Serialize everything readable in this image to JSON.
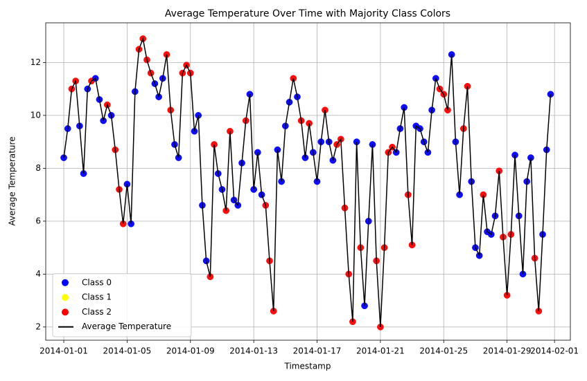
{
  "chart_data": {
    "type": "scatter",
    "title": "Average Temperature Over Time with Majority Class Colors",
    "xlabel": "Timestamp",
    "ylabel": "Average Temperature",
    "xlim": [
      -1.14,
      32
    ],
    "ylim": [
      1.5,
      13.5
    ],
    "xticks": [
      {
        "value": 0,
        "label": "2014-01-01"
      },
      {
        "value": 4,
        "label": "2014-01-05"
      },
      {
        "value": 8,
        "label": "2014-01-09"
      },
      {
        "value": 12,
        "label": "2014-01-13"
      },
      {
        "value": 16,
        "label": "2014-01-17"
      },
      {
        "value": 20,
        "label": "2014-01-21"
      },
      {
        "value": 24,
        "label": "2014-01-25"
      },
      {
        "value": 28,
        "label": "2014-01-29"
      },
      {
        "value": 31,
        "label": "2014-02-01"
      }
    ],
    "yticks": [
      2,
      4,
      6,
      8,
      10,
      12
    ],
    "grid": true,
    "legend_position": "lower left",
    "classes": [
      {
        "name": "Class 0",
        "color": "#0000ff"
      },
      {
        "name": "Class 1",
        "color": "#ffff00"
      },
      {
        "name": "Class 2",
        "color": "#ff0000"
      }
    ],
    "x": [
      0,
      0.25,
      0.5,
      0.75,
      1,
      1.25,
      1.5,
      1.75,
      2,
      2.25,
      2.5,
      2.75,
      3,
      3.25,
      3.5,
      3.75,
      4,
      4.25,
      4.5,
      4.75,
      5,
      5.25,
      5.5,
      5.75,
      6,
      6.25,
      6.5,
      6.75,
      7,
      7.25,
      7.5,
      7.75,
      8,
      8.25,
      8.5,
      8.75,
      9,
      9.25,
      9.5,
      9.75,
      10,
      10.25,
      10.5,
      10.75,
      11,
      11.25,
      11.5,
      11.75,
      12,
      12.25,
      12.5,
      12.75,
      13,
      13.25,
      13.5,
      13.75,
      14,
      14.25,
      14.5,
      14.75,
      15,
      15.25,
      15.5,
      15.75,
      16,
      16.25,
      16.5,
      16.75,
      17,
      17.25,
      17.5,
      17.75,
      18,
      18.25,
      18.5,
      18.75,
      19,
      19.25,
      19.5,
      19.75,
      20,
      20.25,
      20.5,
      20.75,
      21,
      21.25,
      21.5,
      21.75,
      22,
      22.25,
      22.5,
      22.75,
      23,
      23.25,
      23.5,
      23.75,
      24,
      24.25,
      24.5,
      24.75,
      25,
      25.25,
      25.5,
      25.75,
      26,
      26.25,
      26.5,
      26.75,
      27,
      27.25,
      27.5,
      27.75,
      28,
      28.25,
      28.5,
      28.75,
      29,
      29.25,
      29.5,
      29.75,
      30,
      30.25,
      30.5,
      30.75
    ],
    "series": [
      {
        "name": "Average Temperature",
        "color": "#000000",
        "values": [
          8.4,
          9.5,
          11.0,
          11.3,
          9.6,
          7.8,
          11.0,
          11.3,
          11.4,
          10.6,
          9.8,
          10.4,
          10.0,
          8.7,
          7.2,
          5.9,
          7.4,
          5.9,
          10.9,
          12.5,
          12.9,
          12.1,
          11.6,
          11.2,
          10.7,
          11.4,
          12.3,
          10.2,
          8.9,
          8.4,
          11.6,
          11.9,
          11.6,
          9.4,
          10.0,
          6.6,
          4.5,
          3.9,
          8.9,
          7.8,
          7.2,
          6.4,
          9.4,
          6.8,
          6.6,
          8.2,
          9.8,
          10.8,
          7.2,
          8.6,
          7.0,
          6.6,
          4.5,
          2.6,
          8.7,
          7.5,
          9.6,
          10.5,
          11.4,
          10.7,
          9.8,
          8.4,
          9.7,
          8.6,
          7.5,
          9.0,
          10.2,
          9.0,
          8.3,
          8.9,
          9.1,
          6.5,
          4.0,
          2.2,
          9.0,
          5.0,
          2.8,
          6.0,
          8.9,
          4.5,
          2.0,
          5.0,
          8.6,
          8.8,
          8.6,
          9.5,
          10.3,
          7.0,
          5.1,
          9.6,
          9.5,
          9.0,
          8.6,
          10.2,
          11.4,
          11.0,
          10.8,
          10.2,
          12.3,
          9.0,
          7.0,
          9.5,
          11.1,
          7.5,
          5.0,
          4.7,
          7.0,
          5.6,
          5.5,
          6.2,
          7.9,
          5.4,
          3.2,
          5.5,
          8.5,
          6.2,
          4.0,
          7.5,
          8.4,
          4.6,
          2.6,
          5.5,
          8.7,
          10.8
        ],
        "point_classes": [
          0,
          0,
          2,
          2,
          0,
          0,
          0,
          2,
          0,
          0,
          0,
          2,
          0,
          2,
          2,
          2,
          0,
          0,
          0,
          2,
          2,
          2,
          2,
          0,
          0,
          0,
          2,
          2,
          0,
          0,
          2,
          2,
          2,
          0,
          0,
          0,
          0,
          2,
          2,
          0,
          0,
          2,
          2,
          0,
          0,
          0,
          2,
          0,
          0,
          0,
          0,
          2,
          2,
          2,
          0,
          0,
          0,
          0,
          2,
          0,
          2,
          0,
          2,
          0,
          0,
          0,
          2,
          0,
          0,
          2,
          2,
          2,
          2,
          2,
          0,
          2,
          0,
          0,
          0,
          2,
          2,
          2,
          2,
          2,
          0,
          0,
          0,
          2,
          2,
          0,
          0,
          0,
          0,
          0,
          0,
          2,
          2,
          2,
          0,
          0,
          0,
          2,
          2,
          0,
          0,
          0,
          2,
          0,
          0,
          0,
          2,
          2,
          2,
          2,
          0,
          0,
          0,
          0,
          0,
          2,
          2,
          0,
          0,
          0
        ]
      }
    ]
  }
}
